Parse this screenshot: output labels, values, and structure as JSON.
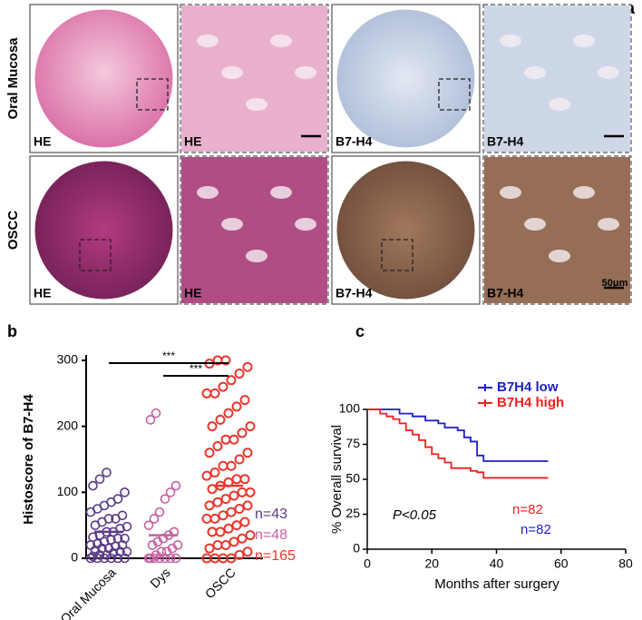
{
  "panel_a": {
    "label": "a",
    "rows": [
      "Oral Mucosa",
      "OSCC"
    ],
    "tiles": [
      [
        "HE",
        "HE",
        "B7-H4",
        "B7-H4"
      ],
      [
        "HE",
        "HE",
        "B7-H4",
        "B7-H4"
      ]
    ],
    "scale_bar": "50μm"
  },
  "chart_data": [
    {
      "type": "strip",
      "panel_label": "b",
      "ylabel": "Histoscore  of B7-H4",
      "categories": [
        "Oral Mucosa",
        "Dys",
        "OSCC"
      ],
      "colors": [
        "#5b3c87",
        "#c462a0",
        "#e8382f"
      ],
      "values": [
        [
          0,
          0,
          0,
          0,
          0,
          0,
          3,
          5,
          5,
          8,
          10,
          10,
          12,
          15,
          15,
          18,
          20,
          20,
          22,
          25,
          28,
          30,
          30,
          32,
          35,
          40,
          40,
          45,
          48,
          50,
          55,
          60,
          60,
          65,
          70,
          75,
          80,
          85,
          90,
          100,
          110,
          120,
          130
        ],
        [
          0,
          0,
          0,
          0,
          0,
          0,
          0,
          5,
          10,
          10,
          15,
          20,
          20,
          25,
          30,
          35,
          40,
          50,
          60,
          70,
          90,
          100,
          110,
          210,
          220
        ],
        [
          0,
          0,
          0,
          0,
          5,
          10,
          15,
          20,
          20,
          25,
          30,
          35,
          40,
          40,
          45,
          50,
          55,
          60,
          60,
          65,
          70,
          75,
          80,
          80,
          85,
          90,
          95,
          100,
          100,
          105,
          110,
          115,
          120,
          120,
          125,
          130,
          140,
          140,
          150,
          160,
          160,
          170,
          180,
          180,
          190,
          200,
          200,
          210,
          220,
          230,
          240,
          250,
          250,
          260,
          270,
          280,
          290,
          295,
          300,
          300
        ]
      ],
      "means": [
        40,
        35,
        110
      ],
      "ylim": [
        0,
        300
      ],
      "yticks": [
        0,
        100,
        200,
        300
      ],
      "annotations": [
        "n=43",
        "n=48",
        "n=165"
      ],
      "significance": [
        "***",
        "***"
      ]
    },
    {
      "type": "step",
      "panel_label": "c",
      "xlabel": "Months after surgery",
      "ylabel": "% Overall survival",
      "series": [
        {
          "name": "B7H4  low",
          "color": "#1f1fc4",
          "x": [
            0,
            8,
            10,
            14,
            18,
            22,
            24,
            28,
            30,
            32,
            34,
            36,
            56
          ],
          "values": [
            100,
            100,
            97,
            95,
            92,
            90,
            87,
            85,
            80,
            77,
            67,
            63,
            63
          ]
        },
        {
          "name": "B7H4 high",
          "color": "#f02020",
          "x": [
            0,
            4,
            6,
            8,
            10,
            12,
            14,
            16,
            18,
            20,
            22,
            24,
            26,
            32,
            34,
            36,
            56
          ],
          "values": [
            100,
            97,
            95,
            93,
            90,
            85,
            82,
            78,
            73,
            68,
            65,
            62,
            58,
            56,
            55,
            51,
            51
          ]
        }
      ],
      "xlim": [
        0,
        80
      ],
      "xticks": [
        0,
        20,
        40,
        60,
        80
      ],
      "ylim": [
        0,
        100
      ],
      "yticks": [
        0,
        25,
        50,
        75,
        100
      ],
      "annotations": [
        "P<0.05",
        "n=82",
        "n=82"
      ]
    }
  ]
}
